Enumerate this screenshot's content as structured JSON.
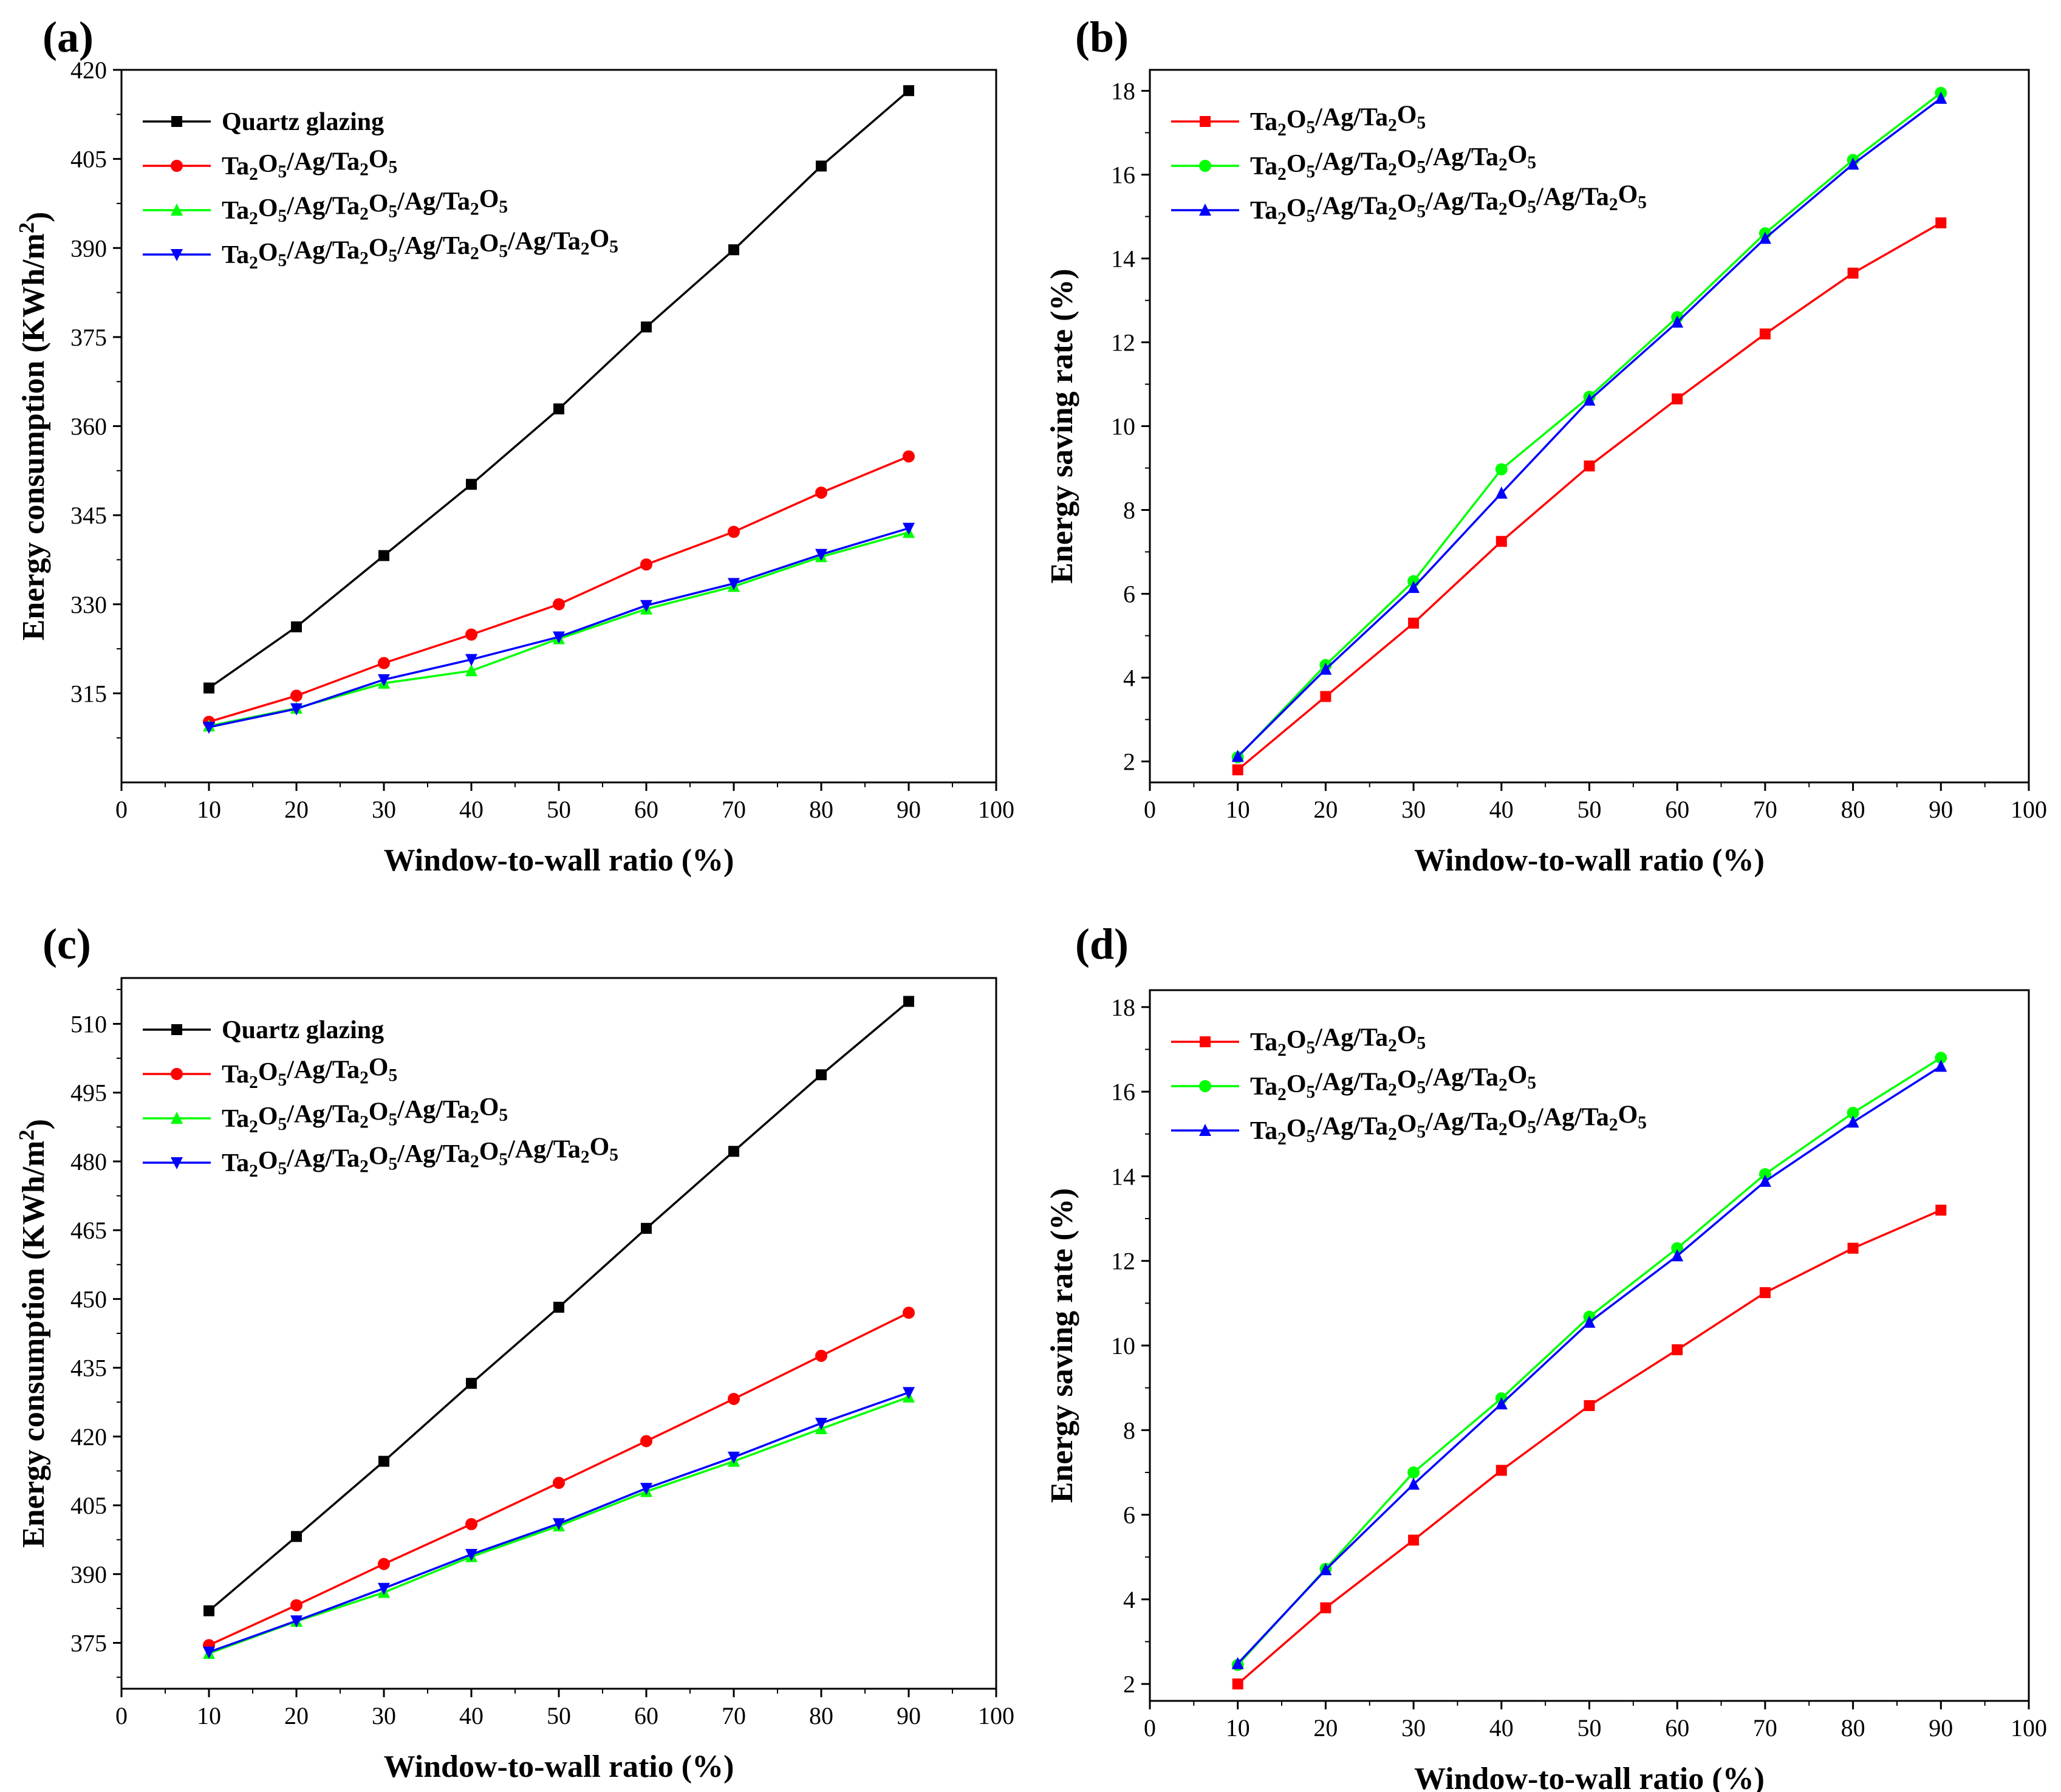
{
  "figure": {
    "panels": [
      {
        "label": "(a)",
        "chart_data": {
          "type": "line",
          "xlabel": "Window-to-wall ratio (%)",
          "ylabel": "Energy consumption (KWh/m2)",
          "xlim": [
            0,
            100
          ],
          "ylim": [
            300,
            420
          ],
          "xticks": [
            0,
            10,
            20,
            30,
            40,
            50,
            60,
            70,
            80,
            90,
            100
          ],
          "yticks": [
            315,
            330,
            345,
            360,
            375,
            390,
            405,
            420
          ],
          "x": [
            10,
            20,
            30,
            40,
            50,
            60,
            70,
            80,
            90
          ],
          "series": [
            {
              "name": "Quartz glazing",
              "color": "#000000",
              "marker": "square",
              "values": [
                315.9,
                326.2,
                338.2,
                350.2,
                362.9,
                376.7,
                389.7,
                403.8,
                416.5
              ]
            },
            {
              "name": "Ta2O5/Ag/Ta2O5",
              "color": "#ff0000",
              "marker": "circle",
              "values": [
                310.2,
                314.6,
                320.1,
                324.9,
                330.0,
                336.7,
                342.2,
                348.8,
                354.9
              ]
            },
            {
              "name": "Ta2O5/Ag/Ta2O5/Ag/Ta2O5",
              "color": "#00ff00",
              "marker": "triangle-up",
              "values": [
                309.5,
                312.5,
                316.7,
                318.8,
                324.2,
                329.2,
                333.0,
                338.0,
                342.1
              ]
            },
            {
              "name": "Ta2O5/Ag/Ta2O5/Ag/Ta2O5/Ag/Ta2O5",
              "color": "#0000ff",
              "marker": "triangle-down",
              "values": [
                309.3,
                312.4,
                317.3,
                320.7,
                324.5,
                329.8,
                333.5,
                338.4,
                342.8
              ]
            }
          ],
          "legend": "top-left"
        }
      },
      {
        "label": "(b)",
        "chart_data": {
          "type": "line",
          "xlabel": "Window-to-wall ratio (%)",
          "ylabel": "Energy saving rate (%)",
          "xlim": [
            0,
            100
          ],
          "ylim": [
            1.5,
            18.5
          ],
          "xticks": [
            0,
            10,
            20,
            30,
            40,
            50,
            60,
            70,
            80,
            90,
            100
          ],
          "yticks": [
            2,
            4,
            6,
            8,
            10,
            12,
            14,
            16,
            18
          ],
          "x": [
            10,
            20,
            30,
            40,
            50,
            60,
            70,
            80,
            90
          ],
          "series": [
            {
              "name": "Ta2O5/Ag/Ta2O5",
              "color": "#ff0000",
              "marker": "square",
              "values": [
                1.8,
                3.55,
                5.3,
                7.25,
                9.05,
                10.65,
                12.2,
                13.65,
                14.85
              ]
            },
            {
              "name": "Ta2O5/Ag/Ta2O5/Ag/Ta2O5",
              "color": "#00ff00",
              "marker": "circle",
              "values": [
                2.1,
                4.3,
                6.3,
                8.97,
                10.7,
                12.6,
                14.6,
                16.35,
                17.95
              ]
            },
            {
              "name": "Ta2O5/Ag/Ta2O5/Ag/Ta2O5/Ag/Ta2O5",
              "color": "#0000ff",
              "marker": "triangle-up",
              "values": [
                2.12,
                4.2,
                6.15,
                8.4,
                10.62,
                12.48,
                14.48,
                16.25,
                17.82
              ]
            }
          ],
          "legend": "top-left"
        }
      },
      {
        "label": "(c)",
        "chart_data": {
          "type": "line",
          "xlabel": "Window-to-wall ratio (%)",
          "ylabel": "Energy consumption (KWh/m2)",
          "xlim": [
            0,
            100
          ],
          "ylim": [
            365,
            520
          ],
          "xticks": [
            0,
            10,
            20,
            30,
            40,
            50,
            60,
            70,
            80,
            90,
            100
          ],
          "yticks": [
            375,
            390,
            405,
            420,
            435,
            450,
            465,
            480,
            495,
            510
          ],
          "x": [
            10,
            20,
            30,
            40,
            50,
            60,
            70,
            80,
            90
          ],
          "series": [
            {
              "name": "Quartz glazing",
              "color": "#000000",
              "marker": "square",
              "values": [
                382.0,
                398.2,
                414.6,
                431.6,
                448.2,
                465.4,
                482.2,
                498.9,
                514.9
              ]
            },
            {
              "name": "Ta2O5/Ag/Ta2O5",
              "color": "#ff0000",
              "marker": "circle",
              "values": [
                374.5,
                383.2,
                392.2,
                400.9,
                409.9,
                419.0,
                428.2,
                437.6,
                447.0
              ]
            },
            {
              "name": "Ta2O5/Ag/Ta2O5/Ag/Ta2O5",
              "color": "#00ff00",
              "marker": "triangle-up",
              "values": [
                372.7,
                379.7,
                386.0,
                393.8,
                400.5,
                408.0,
                414.6,
                421.7,
                428.6
              ]
            },
            {
              "name": "Ta2O5/Ag/Ta2O5/Ag/Ta2O5/Ag/Ta2O5",
              "color": "#0000ff",
              "marker": "triangle-down",
              "values": [
                373.0,
                379.8,
                386.9,
                394.3,
                401.0,
                408.7,
                415.5,
                422.9,
                429.6
              ]
            }
          ],
          "legend": "top-left"
        }
      },
      {
        "label": "(d)",
        "chart_data": {
          "type": "line",
          "xlabel": "Window-to-wall ratio (%)",
          "ylabel": "Energy saving rate (%)",
          "xlim": [
            0,
            100
          ],
          "ylim": [
            1.6,
            18.4
          ],
          "xticks": [
            0,
            10,
            20,
            30,
            40,
            50,
            60,
            70,
            80,
            90,
            100
          ],
          "yticks": [
            2,
            4,
            6,
            8,
            10,
            12,
            14,
            16,
            18
          ],
          "x": [
            10,
            20,
            30,
            40,
            50,
            60,
            70,
            80,
            90
          ],
          "series": [
            {
              "name": "Ta2O5/Ag/Ta2O5",
              "color": "#ff0000",
              "marker": "square",
              "values": [
                2.0,
                3.8,
                5.4,
                7.05,
                8.58,
                9.9,
                11.25,
                12.3,
                13.2
              ]
            },
            {
              "name": "Ta2O5/Ag/Ta2O5/Ag/Ta2O5",
              "color": "#00ff00",
              "marker": "circle",
              "values": [
                2.45,
                4.72,
                7.0,
                8.75,
                10.68,
                12.3,
                14.05,
                15.5,
                16.8
              ]
            },
            {
              "name": "Ta2O5/Ag/Ta2O5/Ag/Ta2O5/Ag/Ta2O5",
              "color": "#0000ff",
              "marker": "triangle-up",
              "values": [
                2.48,
                4.7,
                6.72,
                8.62,
                10.55,
                12.12,
                13.88,
                15.28,
                16.6
              ]
            }
          ],
          "legend": "top-left"
        }
      }
    ]
  }
}
